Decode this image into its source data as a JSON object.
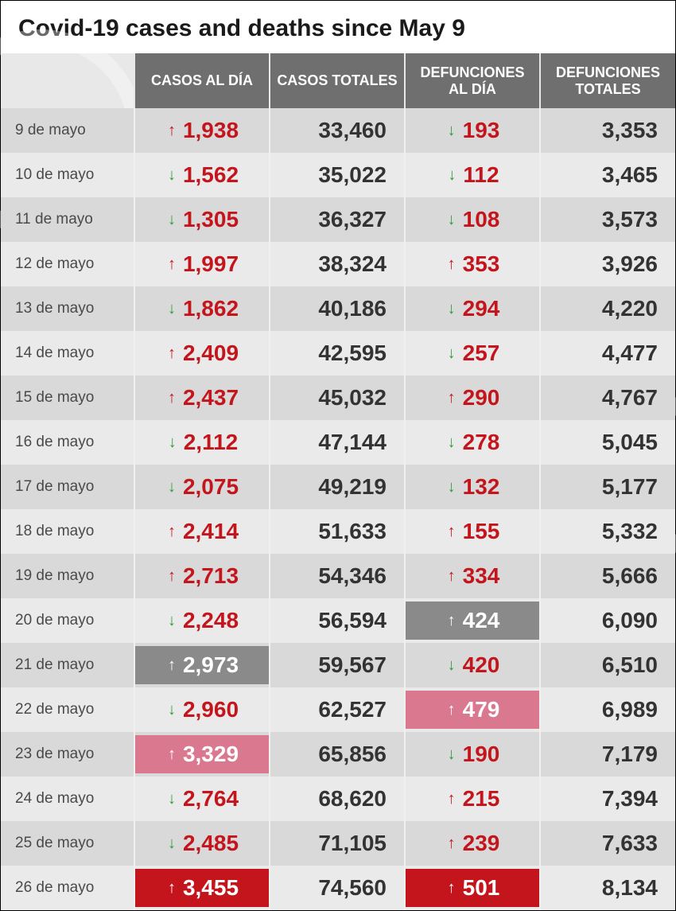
{
  "title": "Covid-19 cases and deaths since May 9",
  "colors": {
    "value_red": "#c4151c",
    "arrow_up_red": "#c4151c",
    "arrow_down_green": "#2e9b3a",
    "text_dark": "#333333",
    "header_bg": "#6f6f6f",
    "row_odd": "#d9d9d9",
    "row_even": "#eaeaea",
    "highlight_gray": "#8a8a8a",
    "highlight_pink": "#d9788f",
    "highlight_red": "#c4151c"
  },
  "columns": [
    "",
    "CASOS AL DÍA",
    "CASOS TOTALES",
    "DEFUNCIONES AL DÍA",
    "DEFUNCIONES TOTALES"
  ],
  "rows": [
    {
      "date": "9 de mayo",
      "cases_day": "1,938",
      "cases_dir": "up",
      "cases_hl": null,
      "cases_total": "33,460",
      "deaths_day": "193",
      "deaths_dir": "down",
      "deaths_hl": null,
      "deaths_total": "3,353"
    },
    {
      "date": "10 de mayo",
      "cases_day": "1,562",
      "cases_dir": "down",
      "cases_hl": null,
      "cases_total": "35,022",
      "deaths_day": "112",
      "deaths_dir": "down",
      "deaths_hl": null,
      "deaths_total": "3,465"
    },
    {
      "date": "11 de mayo",
      "cases_day": "1,305",
      "cases_dir": "down",
      "cases_hl": null,
      "cases_total": "36,327",
      "deaths_day": "108",
      "deaths_dir": "down",
      "deaths_hl": null,
      "deaths_total": "3,573"
    },
    {
      "date": "12 de mayo",
      "cases_day": "1,997",
      "cases_dir": "up",
      "cases_hl": null,
      "cases_total": "38,324",
      "deaths_day": "353",
      "deaths_dir": "up",
      "deaths_hl": null,
      "deaths_total": "3,926"
    },
    {
      "date": "13 de mayo",
      "cases_day": "1,862",
      "cases_dir": "down",
      "cases_hl": null,
      "cases_total": "40,186",
      "deaths_day": "294",
      "deaths_dir": "down",
      "deaths_hl": null,
      "deaths_total": "4,220"
    },
    {
      "date": "14 de mayo",
      "cases_day": "2,409",
      "cases_dir": "up",
      "cases_hl": null,
      "cases_total": "42,595",
      "deaths_day": "257",
      "deaths_dir": "down",
      "deaths_hl": null,
      "deaths_total": "4,477"
    },
    {
      "date": "15 de mayo",
      "cases_day": "2,437",
      "cases_dir": "up",
      "cases_hl": null,
      "cases_total": "45,032",
      "deaths_day": "290",
      "deaths_dir": "up",
      "deaths_hl": null,
      "deaths_total": "4,767"
    },
    {
      "date": "16 de mayo",
      "cases_day": "2,112",
      "cases_dir": "down",
      "cases_hl": null,
      "cases_total": "47,144",
      "deaths_day": "278",
      "deaths_dir": "down",
      "deaths_hl": null,
      "deaths_total": "5,045"
    },
    {
      "date": "17 de mayo",
      "cases_day": "2,075",
      "cases_dir": "down",
      "cases_hl": null,
      "cases_total": "49,219",
      "deaths_day": "132",
      "deaths_dir": "down",
      "deaths_hl": null,
      "deaths_total": "5,177"
    },
    {
      "date": "18 de mayo",
      "cases_day": "2,414",
      "cases_dir": "up",
      "cases_hl": null,
      "cases_total": "51,633",
      "deaths_day": "155",
      "deaths_dir": "up",
      "deaths_hl": null,
      "deaths_total": "5,332"
    },
    {
      "date": "19 de mayo",
      "cases_day": "2,713",
      "cases_dir": "up",
      "cases_hl": null,
      "cases_total": "54,346",
      "deaths_day": "334",
      "deaths_dir": "up",
      "deaths_hl": null,
      "deaths_total": "5,666"
    },
    {
      "date": "20 de mayo",
      "cases_day": "2,248",
      "cases_dir": "down",
      "cases_hl": null,
      "cases_total": "56,594",
      "deaths_day": "424",
      "deaths_dir": "up",
      "deaths_hl": "gray",
      "deaths_total": "6,090"
    },
    {
      "date": "21 de mayo",
      "cases_day": "2,973",
      "cases_dir": "up",
      "cases_hl": "gray",
      "cases_total": "59,567",
      "deaths_day": "420",
      "deaths_dir": "down",
      "deaths_hl": null,
      "deaths_total": "6,510"
    },
    {
      "date": "22 de mayo",
      "cases_day": "2,960",
      "cases_dir": "down",
      "cases_hl": null,
      "cases_total": "62,527",
      "deaths_day": "479",
      "deaths_dir": "up",
      "deaths_hl": "pink",
      "deaths_total": "6,989"
    },
    {
      "date": "23 de mayo",
      "cases_day": "3,329",
      "cases_dir": "up",
      "cases_hl": "pink",
      "cases_total": "65,856",
      "deaths_day": "190",
      "deaths_dir": "down",
      "deaths_hl": null,
      "deaths_total": "7,179"
    },
    {
      "date": "24 de mayo",
      "cases_day": "2,764",
      "cases_dir": "down",
      "cases_hl": null,
      "cases_total": "68,620",
      "deaths_day": "215",
      "deaths_dir": "up",
      "deaths_hl": null,
      "deaths_total": "7,394"
    },
    {
      "date": "25 de mayo",
      "cases_day": "2,485",
      "cases_dir": "down",
      "cases_hl": null,
      "cases_total": "71,105",
      "deaths_day": "239",
      "deaths_dir": "up",
      "deaths_hl": null,
      "deaths_total": "7,633"
    },
    {
      "date": "26 de mayo",
      "cases_day": "3,455",
      "cases_dir": "up",
      "cases_hl": "red",
      "cases_total": "74,560",
      "deaths_day": "501",
      "deaths_dir": "up",
      "deaths_hl": "red",
      "deaths_total": "8,134"
    }
  ]
}
